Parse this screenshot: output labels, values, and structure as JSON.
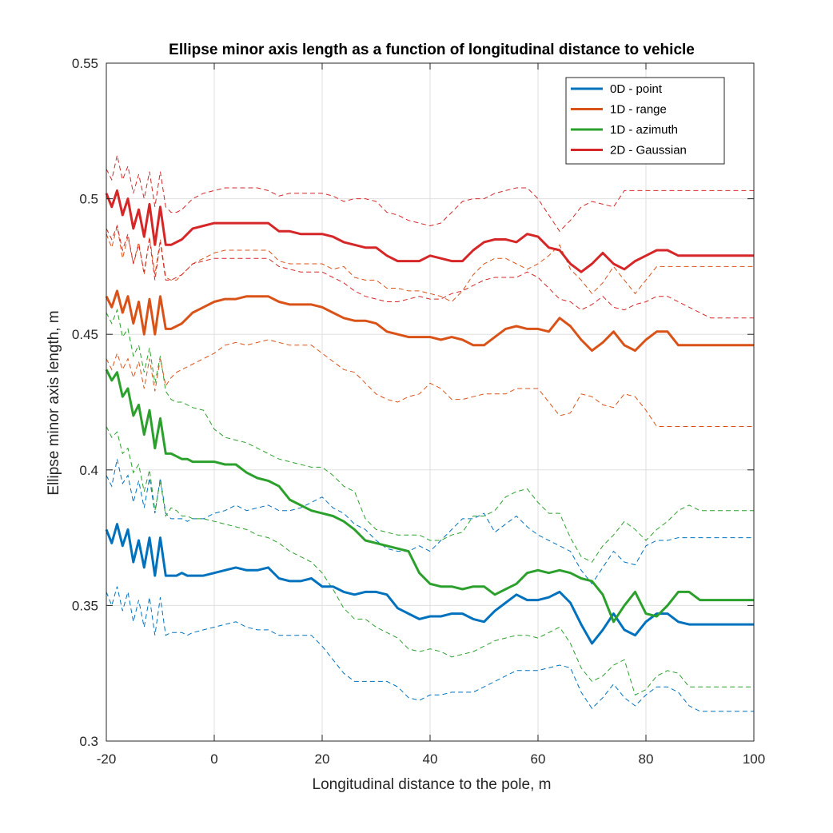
{
  "chart_data": {
    "type": "line",
    "title": "Ellipse minor axis length as a function of longitudinal distance to vehicle",
    "xlabel": "Longitudinal distance to the pole, m",
    "ylabel": "Ellipse minor axis length, m",
    "xlim": [
      -20,
      100
    ],
    "ylim": [
      0.3,
      0.55
    ],
    "xticks": [
      -20,
      0,
      20,
      40,
      60,
      80,
      100
    ],
    "yticks": [
      0.3,
      0.35,
      0.4,
      0.45,
      0.5,
      0.55
    ],
    "xtick_labels": [
      "-20",
      "0",
      "20",
      "40",
      "60",
      "80",
      "100"
    ],
    "ytick_labels": [
      "0.3",
      "0.35",
      "0.4",
      "0.45",
      "0.5",
      "0.55"
    ],
    "grid": true,
    "legend_position": "top-right",
    "x": [
      -20,
      -19,
      -18,
      -17,
      -16,
      -15,
      -14,
      -13,
      -12,
      -11,
      -10,
      -9,
      -8,
      -7,
      -6,
      -5,
      -4,
      -2,
      0,
      2,
      4,
      6,
      8,
      10,
      12,
      14,
      16,
      18,
      20,
      22,
      24,
      26,
      28,
      30,
      32,
      34,
      36,
      38,
      40,
      42,
      44,
      46,
      48,
      50,
      52,
      54,
      56,
      58,
      60,
      62,
      64,
      66,
      68,
      70,
      72,
      74,
      76,
      78,
      80,
      82,
      84,
      86,
      88,
      90,
      92,
      94,
      96,
      98,
      100
    ],
    "series": [
      {
        "name": "0D - point",
        "color": "#0072BD",
        "values": [
          0.378,
          0.373,
          0.38,
          0.372,
          0.378,
          0.366,
          0.374,
          0.364,
          0.375,
          0.361,
          0.375,
          0.361,
          0.361,
          0.361,
          0.362,
          0.361,
          0.361,
          0.361,
          0.362,
          0.363,
          0.364,
          0.363,
          0.363,
          0.364,
          0.36,
          0.359,
          0.359,
          0.36,
          0.357,
          0.357,
          0.355,
          0.354,
          0.355,
          0.355,
          0.354,
          0.349,
          0.347,
          0.345,
          0.346,
          0.346,
          0.347,
          0.347,
          0.345,
          0.344,
          0.348,
          0.351,
          0.354,
          0.352,
          0.352,
          0.353,
          0.355,
          0.351,
          0.343,
          0.336,
          0.341,
          0.347,
          0.341,
          0.339,
          0.344,
          0.347,
          0.347,
          0.344,
          0.343,
          0.343,
          0.343,
          0.343,
          0.343,
          0.343,
          0.343
        ],
        "upper": [
          0.398,
          0.394,
          0.404,
          0.395,
          0.398,
          0.388,
          0.396,
          0.386,
          0.397,
          0.384,
          0.397,
          0.384,
          0.382,
          0.382,
          0.382,
          0.381,
          0.382,
          0.382,
          0.384,
          0.385,
          0.387,
          0.385,
          0.386,
          0.387,
          0.385,
          0.385,
          0.386,
          0.388,
          0.39,
          0.386,
          0.384,
          0.38,
          0.378,
          0.374,
          0.371,
          0.37,
          0.37,
          0.372,
          0.37,
          0.374,
          0.378,
          0.382,
          0.382,
          0.384,
          0.377,
          0.38,
          0.383,
          0.379,
          0.376,
          0.374,
          0.372,
          0.37,
          0.363,
          0.358,
          0.364,
          0.37,
          0.366,
          0.365,
          0.372,
          0.374,
          0.374,
          0.375,
          0.375,
          0.375,
          0.375,
          0.375,
          0.375,
          0.375,
          0.375
        ],
        "lower": [
          0.355,
          0.35,
          0.357,
          0.348,
          0.355,
          0.344,
          0.352,
          0.342,
          0.353,
          0.339,
          0.353,
          0.339,
          0.34,
          0.34,
          0.34,
          0.339,
          0.34,
          0.341,
          0.342,
          0.343,
          0.344,
          0.342,
          0.341,
          0.341,
          0.339,
          0.339,
          0.339,
          0.339,
          0.335,
          0.33,
          0.325,
          0.322,
          0.322,
          0.322,
          0.322,
          0.32,
          0.316,
          0.315,
          0.317,
          0.317,
          0.318,
          0.318,
          0.318,
          0.32,
          0.322,
          0.324,
          0.326,
          0.326,
          0.326,
          0.327,
          0.328,
          0.327,
          0.318,
          0.312,
          0.316,
          0.321,
          0.316,
          0.313,
          0.317,
          0.32,
          0.32,
          0.318,
          0.313,
          0.311,
          0.311,
          0.311,
          0.311,
          0.311,
          0.311
        ]
      },
      {
        "name": "1D - range",
        "color": "#D95319",
        "values": [
          0.464,
          0.46,
          0.466,
          0.458,
          0.464,
          0.454,
          0.462,
          0.45,
          0.463,
          0.45,
          0.464,
          0.452,
          0.452,
          0.453,
          0.454,
          0.456,
          0.458,
          0.46,
          0.462,
          0.463,
          0.463,
          0.464,
          0.464,
          0.464,
          0.462,
          0.461,
          0.461,
          0.461,
          0.46,
          0.458,
          0.456,
          0.455,
          0.455,
          0.454,
          0.451,
          0.45,
          0.449,
          0.449,
          0.449,
          0.448,
          0.449,
          0.448,
          0.446,
          0.446,
          0.449,
          0.452,
          0.453,
          0.452,
          0.452,
          0.451,
          0.456,
          0.453,
          0.448,
          0.444,
          0.447,
          0.451,
          0.446,
          0.444,
          0.448,
          0.451,
          0.451,
          0.446,
          0.446,
          0.446,
          0.446,
          0.446,
          0.446,
          0.446,
          0.446
        ],
        "upper": [
          0.487,
          0.482,
          0.49,
          0.478,
          0.486,
          0.476,
          0.484,
          0.472,
          0.486,
          0.472,
          0.485,
          0.471,
          0.47,
          0.47,
          0.472,
          0.474,
          0.476,
          0.478,
          0.48,
          0.481,
          0.481,
          0.481,
          0.481,
          0.481,
          0.477,
          0.476,
          0.476,
          0.476,
          0.476,
          0.474,
          0.475,
          0.471,
          0.47,
          0.47,
          0.467,
          0.467,
          0.466,
          0.466,
          0.465,
          0.464,
          0.462,
          0.466,
          0.472,
          0.476,
          0.478,
          0.478,
          0.476,
          0.474,
          0.476,
          0.479,
          0.483,
          0.474,
          0.47,
          0.465,
          0.469,
          0.475,
          0.47,
          0.465,
          0.47,
          0.475,
          0.475,
          0.475,
          0.475,
          0.475,
          0.475,
          0.475,
          0.475,
          0.475,
          0.475
        ],
        "lower": [
          0.441,
          0.437,
          0.443,
          0.437,
          0.441,
          0.434,
          0.44,
          0.43,
          0.441,
          0.429,
          0.441,
          0.431,
          0.434,
          0.436,
          0.437,
          0.438,
          0.439,
          0.441,
          0.443,
          0.446,
          0.447,
          0.446,
          0.447,
          0.448,
          0.447,
          0.446,
          0.446,
          0.446,
          0.443,
          0.44,
          0.437,
          0.436,
          0.432,
          0.428,
          0.426,
          0.425,
          0.427,
          0.428,
          0.432,
          0.43,
          0.426,
          0.426,
          0.427,
          0.428,
          0.428,
          0.428,
          0.43,
          0.43,
          0.43,
          0.425,
          0.42,
          0.421,
          0.428,
          0.427,
          0.424,
          0.423,
          0.428,
          0.427,
          0.422,
          0.416,
          0.416,
          0.416,
          0.416,
          0.416,
          0.416,
          0.416,
          0.416,
          0.416,
          0.416
        ]
      },
      {
        "name": "1D - azimuth",
        "color": "#2CA02C",
        "values": [
          0.437,
          0.433,
          0.436,
          0.427,
          0.43,
          0.42,
          0.424,
          0.413,
          0.422,
          0.408,
          0.419,
          0.406,
          0.406,
          0.405,
          0.404,
          0.404,
          0.403,
          0.403,
          0.403,
          0.402,
          0.402,
          0.399,
          0.397,
          0.396,
          0.394,
          0.389,
          0.387,
          0.385,
          0.384,
          0.383,
          0.381,
          0.378,
          0.374,
          0.373,
          0.372,
          0.371,
          0.37,
          0.362,
          0.358,
          0.357,
          0.357,
          0.356,
          0.357,
          0.357,
          0.354,
          0.356,
          0.358,
          0.362,
          0.363,
          0.362,
          0.363,
          0.362,
          0.36,
          0.359,
          0.354,
          0.344,
          0.35,
          0.355,
          0.347,
          0.346,
          0.35,
          0.355,
          0.355,
          0.352,
          0.352,
          0.352,
          0.352,
          0.352,
          0.352
        ],
        "upper": [
          0.458,
          0.454,
          0.459,
          0.449,
          0.452,
          0.442,
          0.446,
          0.436,
          0.445,
          0.432,
          0.442,
          0.429,
          0.426,
          0.425,
          0.425,
          0.424,
          0.423,
          0.422,
          0.415,
          0.412,
          0.411,
          0.41,
          0.408,
          0.406,
          0.404,
          0.403,
          0.402,
          0.401,
          0.401,
          0.398,
          0.394,
          0.392,
          0.382,
          0.378,
          0.377,
          0.376,
          0.376,
          0.376,
          0.374,
          0.374,
          0.376,
          0.377,
          0.383,
          0.383,
          0.385,
          0.39,
          0.392,
          0.393,
          0.388,
          0.384,
          0.384,
          0.375,
          0.368,
          0.366,
          0.372,
          0.376,
          0.381,
          0.378,
          0.374,
          0.378,
          0.381,
          0.385,
          0.387,
          0.385,
          0.385,
          0.385,
          0.385,
          0.385,
          0.385
        ],
        "lower": [
          0.416,
          0.412,
          0.414,
          0.406,
          0.408,
          0.399,
          0.402,
          0.392,
          0.4,
          0.385,
          0.396,
          0.383,
          0.386,
          0.385,
          0.383,
          0.383,
          0.382,
          0.382,
          0.381,
          0.38,
          0.379,
          0.378,
          0.376,
          0.375,
          0.373,
          0.37,
          0.368,
          0.366,
          0.362,
          0.356,
          0.349,
          0.345,
          0.345,
          0.342,
          0.34,
          0.338,
          0.334,
          0.333,
          0.334,
          0.333,
          0.331,
          0.332,
          0.333,
          0.335,
          0.337,
          0.338,
          0.339,
          0.339,
          0.338,
          0.34,
          0.342,
          0.336,
          0.327,
          0.322,
          0.324,
          0.328,
          0.33,
          0.317,
          0.319,
          0.324,
          0.326,
          0.325,
          0.32,
          0.32,
          0.32,
          0.32,
          0.32,
          0.32,
          0.32
        ]
      },
      {
        "name": "2D - Gaussian",
        "color": "#D62728",
        "values": [
          0.502,
          0.497,
          0.503,
          0.494,
          0.5,
          0.489,
          0.496,
          0.486,
          0.498,
          0.483,
          0.497,
          0.483,
          0.483,
          0.484,
          0.485,
          0.487,
          0.489,
          0.49,
          0.491,
          0.491,
          0.491,
          0.491,
          0.491,
          0.491,
          0.488,
          0.488,
          0.487,
          0.487,
          0.487,
          0.486,
          0.484,
          0.483,
          0.482,
          0.482,
          0.479,
          0.477,
          0.477,
          0.477,
          0.479,
          0.478,
          0.477,
          0.477,
          0.481,
          0.484,
          0.485,
          0.485,
          0.484,
          0.487,
          0.486,
          0.482,
          0.481,
          0.476,
          0.473,
          0.476,
          0.48,
          0.476,
          0.474,
          0.477,
          0.479,
          0.481,
          0.481,
          0.479,
          0.479,
          0.479,
          0.479,
          0.479,
          0.479,
          0.479,
          0.479
        ],
        "upper": [
          0.511,
          0.507,
          0.516,
          0.507,
          0.512,
          0.502,
          0.509,
          0.5,
          0.51,
          0.497,
          0.51,
          0.497,
          0.495,
          0.495,
          0.496,
          0.498,
          0.5,
          0.502,
          0.503,
          0.504,
          0.504,
          0.504,
          0.504,
          0.503,
          0.501,
          0.502,
          0.502,
          0.502,
          0.502,
          0.501,
          0.499,
          0.5,
          0.5,
          0.499,
          0.495,
          0.494,
          0.492,
          0.491,
          0.49,
          0.491,
          0.495,
          0.499,
          0.5,
          0.5,
          0.502,
          0.503,
          0.504,
          0.504,
          0.5,
          0.494,
          0.488,
          0.492,
          0.497,
          0.499,
          0.498,
          0.497,
          0.503,
          0.503,
          0.503,
          0.503,
          0.503,
          0.503,
          0.503,
          0.503,
          0.503,
          0.503,
          0.503,
          0.503,
          0.503
        ],
        "lower": [
          0.489,
          0.485,
          0.49,
          0.481,
          0.487,
          0.476,
          0.483,
          0.473,
          0.485,
          0.47,
          0.484,
          0.47,
          0.47,
          0.471,
          0.472,
          0.474,
          0.476,
          0.477,
          0.478,
          0.478,
          0.478,
          0.478,
          0.478,
          0.478,
          0.475,
          0.474,
          0.473,
          0.473,
          0.473,
          0.471,
          0.469,
          0.466,
          0.464,
          0.463,
          0.462,
          0.462,
          0.463,
          0.464,
          0.463,
          0.463,
          0.465,
          0.466,
          0.468,
          0.47,
          0.471,
          0.471,
          0.471,
          0.473,
          0.471,
          0.467,
          0.463,
          0.462,
          0.459,
          0.461,
          0.464,
          0.46,
          0.459,
          0.461,
          0.462,
          0.464,
          0.464,
          0.462,
          0.46,
          0.458,
          0.456,
          0.456,
          0.456,
          0.456,
          0.456
        ]
      }
    ]
  }
}
